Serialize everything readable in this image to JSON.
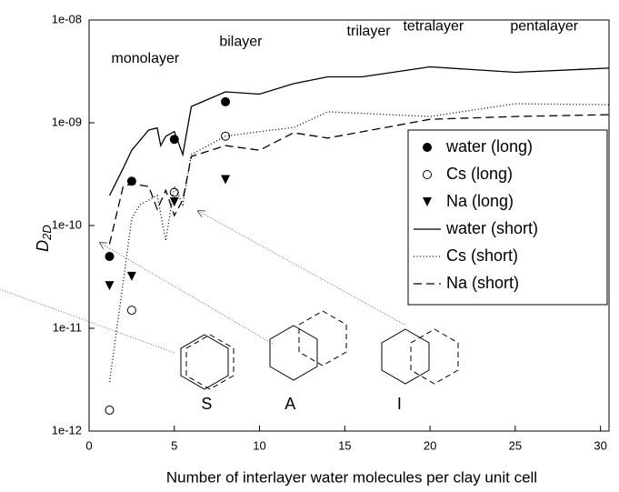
{
  "chart_data": {
    "type": "line",
    "xlabel": "Number of interlayer water molecules per clay unit cell",
    "ylabel": {
      "main": "D",
      "sub": "2D"
    },
    "log_y": true,
    "xlim": [
      0,
      30.5
    ],
    "ylim": [
      1e-12,
      1e-08
    ],
    "xticks": [
      0,
      5,
      10,
      15,
      20,
      25,
      30
    ],
    "yticks": [
      {
        "value": 1e-12,
        "label": "1e-12"
      },
      {
        "value": 1e-11,
        "label": "1e-11"
      },
      {
        "value": 1e-10,
        "label": "1e-10"
      },
      {
        "value": 1e-09,
        "label": "1e-09"
      },
      {
        "value": 1e-08,
        "label": "1e-08"
      }
    ],
    "legend": "right",
    "series": [
      {
        "name": "water (long)",
        "color": "#000000",
        "marker": "filled-circle",
        "x": [
          1.2,
          2.5,
          5,
          8
        ],
        "values": [
          5e-11,
          2.7e-10,
          6.9e-10,
          1.6e-09
        ]
      },
      {
        "name": "Cs (long)",
        "color": "#000000",
        "marker": "open-circle",
        "x": [
          1.2,
          2.5,
          5,
          8
        ],
        "values": [
          1.6e-12,
          1.5e-11,
          2.1e-10,
          7.4e-10
        ]
      },
      {
        "name": "Na (long)",
        "color": "#000000",
        "marker": "triangle",
        "x": [
          1.2,
          2.5,
          5,
          8
        ],
        "values": [
          2.6e-11,
          3.2e-11,
          1.7e-10,
          2.8e-10
        ]
      },
      {
        "name": "water (short)",
        "color": "#000000",
        "style": "solid",
        "x": [
          1.2,
          2,
          2.5,
          3.5,
          4,
          4.2,
          4.5,
          5,
          5.5,
          6,
          8,
          10,
          12,
          14,
          16,
          20,
          25,
          30.5
        ],
        "values": [
          1.96e-10,
          3.6e-10,
          5.4e-10,
          8.5e-10,
          8.9e-10,
          6e-10,
          7.4e-10,
          8.2e-10,
          4.9e-10,
          1.44e-09,
          2e-09,
          1.9e-09,
          2.4e-09,
          2.8e-09,
          2.8e-09,
          3.5e-09,
          3.1e-09,
          3.4e-09
        ]
      },
      {
        "name": "Cs (short)",
        "color": "#000000",
        "style": "dotted",
        "x": [
          1.2,
          2,
          2.5,
          3,
          4,
          4.5,
          5,
          5.5,
          6,
          8,
          10,
          12,
          14,
          20,
          25,
          30.5
        ],
        "values": [
          3e-12,
          2.8e-11,
          1.18e-10,
          1.6e-10,
          1.96e-10,
          7.1e-11,
          2.4e-10,
          1.6e-10,
          4.9e-10,
          7.4e-10,
          8.2e-10,
          9e-10,
          1.28e-09,
          1.15e-09,
          1.53e-09,
          1.5e-09
        ]
      },
      {
        "name": "Na (short)",
        "color": "#000000",
        "style": "dashed",
        "x": [
          1.2,
          2,
          2.5,
          3.5,
          4,
          4.5,
          5,
          5.5,
          6,
          8,
          10,
          12,
          14,
          20,
          25,
          30.5
        ],
        "values": [
          6.6e-11,
          2.4e-10,
          2.55e-10,
          2.4e-10,
          1.44e-10,
          2.2e-10,
          1.25e-10,
          1.78e-10,
          4.7e-10,
          6e-10,
          5.4e-10,
          8e-10,
          7.1e-10,
          1.08e-09,
          1.15e-09,
          1.2e-09
        ]
      }
    ],
    "annotations": [
      {
        "text": "monolayer",
        "x": 3.3,
        "y": 4.2e-09
      },
      {
        "text": "bilayer",
        "x": 8.9,
        "y": 6.1e-09
      },
      {
        "text": "trilayer",
        "x": 16.4,
        "y": 7.7e-09
      },
      {
        "text": "tetralayer",
        "x": 20.2,
        "y": 8.6e-09
      },
      {
        "text": "pentalayer",
        "x": 26.7,
        "y": 8.6e-09
      },
      {
        "text": "S",
        "x": 6.9,
        "y": 1.8e-12
      },
      {
        "text": "A",
        "x": 11.8,
        "y": 1.8e-12
      },
      {
        "text": "I",
        "x": 18.2,
        "y": 1.8e-12
      }
    ]
  }
}
